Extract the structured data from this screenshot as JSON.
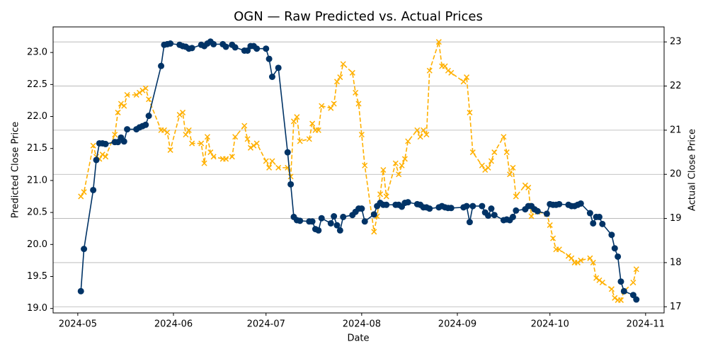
{
  "chart_data": {
    "type": "line",
    "title": "OGN — Raw Predicted vs. Actual Prices",
    "xlabel": "Date",
    "ylabel": "Predicted Close Price",
    "y2label": "Actual Close Price",
    "x": [
      "2024-05-02",
      "2024-05-03",
      "2024-05-06",
      "2024-05-07",
      "2024-05-08",
      "2024-05-09",
      "2024-05-10",
      "2024-05-13",
      "2024-05-14",
      "2024-05-15",
      "2024-05-16",
      "2024-05-17",
      "2024-05-20",
      "2024-05-21",
      "2024-05-22",
      "2024-05-23",
      "2024-05-24",
      "2024-05-28",
      "2024-05-29",
      "2024-05-30",
      "2024-05-31",
      "2024-06-03",
      "2024-06-04",
      "2024-06-05",
      "2024-06-06",
      "2024-06-07",
      "2024-06-10",
      "2024-06-11",
      "2024-06-12",
      "2024-06-13",
      "2024-06-14",
      "2024-06-17",
      "2024-06-18",
      "2024-06-20",
      "2024-06-21",
      "2024-06-24",
      "2024-06-25",
      "2024-06-26",
      "2024-06-27",
      "2024-06-28",
      "2024-07-01",
      "2024-07-02",
      "2024-07-03",
      "2024-07-05",
      "2024-07-08",
      "2024-07-09",
      "2024-07-10",
      "2024-07-11",
      "2024-07-12",
      "2024-07-15",
      "2024-07-16",
      "2024-07-17",
      "2024-07-18",
      "2024-07-19",
      "2024-07-22",
      "2024-07-23",
      "2024-07-24",
      "2024-07-25",
      "2024-07-26",
      "2024-07-29",
      "2024-07-30",
      "2024-07-31",
      "2024-08-01",
      "2024-08-02",
      "2024-08-05",
      "2024-08-06",
      "2024-08-07",
      "2024-08-08",
      "2024-08-09",
      "2024-08-12",
      "2024-08-13",
      "2024-08-14",
      "2024-08-15",
      "2024-08-16",
      "2024-08-19",
      "2024-08-20",
      "2024-08-21",
      "2024-08-22",
      "2024-08-23",
      "2024-08-26",
      "2024-08-27",
      "2024-08-28",
      "2024-08-29",
      "2024-08-30",
      "2024-09-03",
      "2024-09-04",
      "2024-09-05",
      "2024-09-06",
      "2024-09-09",
      "2024-09-10",
      "2024-09-11",
      "2024-09-12",
      "2024-09-13",
      "2024-09-16",
      "2024-09-17",
      "2024-09-18",
      "2024-09-19",
      "2024-09-20",
      "2024-09-23",
      "2024-09-24",
      "2024-09-25",
      "2024-09-26",
      "2024-09-27",
      "2024-09-30",
      "2024-10-01",
      "2024-10-02",
      "2024-10-03",
      "2024-10-04",
      "2024-10-07",
      "2024-10-08",
      "2024-10-09",
      "2024-10-10",
      "2024-10-11",
      "2024-10-14",
      "2024-10-15",
      "2024-10-16",
      "2024-10-17",
      "2024-10-18",
      "2024-10-21",
      "2024-10-22",
      "2024-10-23",
      "2024-10-24",
      "2024-10-25",
      "2024-10-28",
      "2024-10-29"
    ],
    "series": [
      {
        "color": "#003366",
        "marker": "circle",
        "dashed": false,
        "values": [
          19.27,
          19.93,
          20.85,
          21.32,
          21.58,
          21.58,
          21.57,
          21.6,
          21.6,
          21.67,
          21.61,
          21.8,
          21.8,
          21.83,
          21.85,
          21.87,
          22.01,
          22.79,
          23.12,
          23.13,
          23.14,
          23.12,
          23.1,
          23.09,
          23.06,
          23.07,
          23.12,
          23.1,
          23.14,
          23.17,
          23.13,
          23.13,
          23.09,
          23.12,
          23.08,
          23.03,
          23.03,
          23.1,
          23.1,
          23.06,
          23.06,
          22.9,
          22.62,
          22.76,
          21.44,
          20.94,
          20.43,
          20.38,
          20.37,
          20.36,
          20.36,
          20.24,
          20.22,
          20.41,
          20.33,
          20.44,
          20.3,
          20.22,
          20.43,
          20.46,
          20.51,
          20.56,
          20.56,
          20.36,
          20.47,
          20.6,
          20.65,
          20.62,
          20.62,
          20.62,
          20.62,
          20.59,
          20.65,
          20.66,
          20.63,
          20.62,
          20.58,
          20.58,
          20.56,
          20.58,
          20.6,
          20.58,
          20.57,
          20.57,
          20.58,
          20.6,
          20.35,
          20.6,
          20.6,
          20.5,
          20.45,
          20.56,
          20.46,
          20.38,
          20.39,
          20.38,
          20.43,
          20.53,
          20.55,
          20.6,
          20.6,
          20.55,
          20.52,
          20.48,
          20.63,
          20.62,
          20.62,
          20.63,
          20.62,
          20.6,
          20.6,
          20.62,
          20.64,
          20.49,
          20.33,
          20.43,
          20.43,
          20.32,
          20.15,
          19.94,
          19.81,
          19.42,
          19.27,
          19.21,
          19.14
        ]
      },
      {
        "color": "#FFB000",
        "marker": "x",
        "dashed": true,
        "axis": "y2",
        "values": [
          19.5,
          19.6,
          20.65,
          20.4,
          20.35,
          20.45,
          20.4,
          20.9,
          21.4,
          21.6,
          21.55,
          21.8,
          21.8,
          21.85,
          21.9,
          21.95,
          21.7,
          21.0,
          21.0,
          20.95,
          20.55,
          21.35,
          21.4,
          20.9,
          21.0,
          20.7,
          20.7,
          20.25,
          20.85,
          20.5,
          20.4,
          20.35,
          20.35,
          20.4,
          20.85,
          21.1,
          20.8,
          20.6,
          20.65,
          20.7,
          20.3,
          20.15,
          20.3,
          20.15,
          20.15,
          19.95,
          21.2,
          21.3,
          20.75,
          20.8,
          21.15,
          21.0,
          21.0,
          21.55,
          21.5,
          21.6,
          22.1,
          22.2,
          22.5,
          22.3,
          21.85,
          21.6,
          20.9,
          20.2,
          18.7,
          19.05,
          19.55,
          20.1,
          19.5,
          20.25,
          20.0,
          20.2,
          20.35,
          20.75,
          21.0,
          20.85,
          21.0,
          20.9,
          22.35,
          23.0,
          22.45,
          22.45,
          22.35,
          22.3,
          22.1,
          22.2,
          21.4,
          20.5,
          20.2,
          20.1,
          20.15,
          20.3,
          20.5,
          20.85,
          20.5,
          20.0,
          20.15,
          19.5,
          19.75,
          19.7,
          19.05,
          19.2,
          19.15,
          19.1,
          18.85,
          18.55,
          18.3,
          18.3,
          18.15,
          18.1,
          18.0,
          18.0,
          18.05,
          18.1,
          18.0,
          17.65,
          17.6,
          17.55,
          17.4,
          17.2,
          17.15,
          17.15,
          17.35,
          17.55,
          17.85
        ]
      }
    ],
    "xlim": [
      "2024-04-23",
      "2024-11-07"
    ],
    "xticks": [
      {
        "value": "2024-05-01",
        "label": "2024-05"
      },
      {
        "value": "2024-06-01",
        "label": "2024-06"
      },
      {
        "value": "2024-07-01",
        "label": "2024-07"
      },
      {
        "value": "2024-08-01",
        "label": "2024-08"
      },
      {
        "value": "2024-09-01",
        "label": "2024-09"
      },
      {
        "value": "2024-10-01",
        "label": "2024-10"
      },
      {
        "value": "2024-11-01",
        "label": "2024-11"
      }
    ],
    "ylim": [
      18.93,
      23.4
    ],
    "yticks": [
      {
        "value": 19,
        "label": "19.0"
      },
      {
        "value": 19.5,
        "label": "19.5"
      },
      {
        "value": 20,
        "label": "20.0"
      },
      {
        "value": 20.5,
        "label": "20.5"
      },
      {
        "value": 21,
        "label": "21.0"
      },
      {
        "value": 21.5,
        "label": "21.5"
      },
      {
        "value": 22,
        "label": "22.0"
      },
      {
        "value": 22.5,
        "label": "22.5"
      },
      {
        "value": 23,
        "label": "23.0"
      }
    ],
    "y2lim": [
      16.86,
      23.34
    ],
    "y2ticks": [
      17,
      18,
      19,
      20,
      21,
      22,
      23
    ],
    "grid": "y2"
  }
}
